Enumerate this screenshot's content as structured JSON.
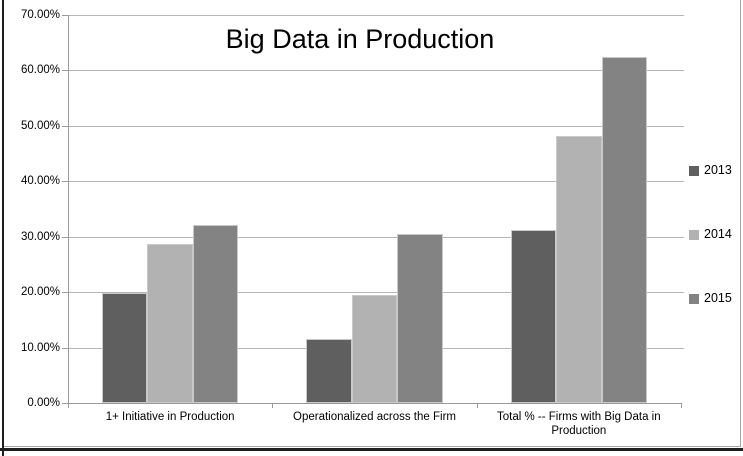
{
  "frame": {
    "outer_line_color": "#1f1f1f",
    "chart_border_color": "#a6a6a6",
    "background": "#ffffff"
  },
  "chart_data": {
    "type": "bar",
    "title": "Big Data in Production",
    "categories": [
      "1+ Initiative in Production",
      "Operationalized across the Firm",
      "Total % -- Firms with Big Data in Production"
    ],
    "series": [
      {
        "name": "2013",
        "color": "#5f5f5f",
        "values": [
          19.8,
          11.5,
          31.3
        ]
      },
      {
        "name": "2014",
        "color": "#b2b2b2",
        "values": [
          28.7,
          19.5,
          48.2
        ]
      },
      {
        "name": "2015",
        "color": "#838383",
        "values": [
          32.1,
          30.4,
          62.5
        ]
      }
    ],
    "ylim": [
      0,
      70
    ],
    "ytick_step": 10,
    "ytick_labels": [
      "0.00%",
      "10.00%",
      "20.00%",
      "30.00%",
      "40.00%",
      "50.00%",
      "60.00%",
      "70.00%"
    ],
    "grid": true,
    "legend_position": "right",
    "gridline_color": "#b5b5b5",
    "axis_color": "#9a9a9a",
    "bar_border_color": "#c9c9c9",
    "text_color": "#000000"
  }
}
